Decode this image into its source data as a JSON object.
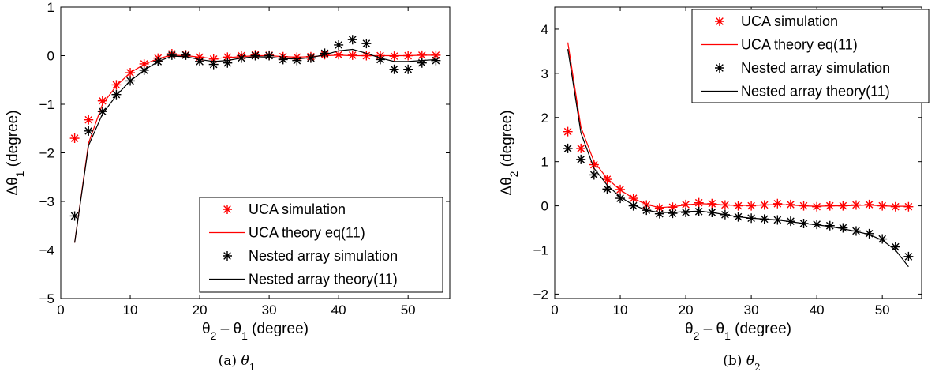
{
  "chart_data": [
    {
      "type": "line",
      "caption_label": "(a)",
      "caption_symbol": "θ",
      "caption_sub": "1",
      "xlabel": "θ2 − θ1 (degree)",
      "ylabel": "Δθ1 (degree)",
      "xlim": [
        0,
        56
      ],
      "ylim": [
        -5,
        1
      ],
      "xticks": [
        0,
        10,
        20,
        30,
        40,
        50
      ],
      "yticks": [
        1,
        0,
        -1,
        -2,
        -3,
        -4,
        -5
      ],
      "legend_position": "bottom-right",
      "series": [
        {
          "name": "UCA simulation",
          "style": "marker",
          "color": "#ff0000",
          "x": [
            2,
            4,
            6,
            8,
            10,
            12,
            14,
            16,
            18,
            20,
            22,
            24,
            26,
            28,
            30,
            32,
            34,
            36,
            38,
            40,
            42,
            44,
            46,
            48,
            50,
            52,
            54
          ],
          "y": [
            -1.7,
            -1.32,
            -0.93,
            -0.6,
            -0.35,
            -0.17,
            -0.05,
            0.04,
            0.02,
            -0.03,
            -0.07,
            -0.03,
            0.0,
            0.02,
            0.01,
            -0.02,
            -0.03,
            -0.02,
            0.02,
            0.02,
            0.01,
            0.0,
            0.0,
            -0.01,
            0.0,
            0.01,
            0.01
          ]
        },
        {
          "name": "UCA theory eq(11)",
          "style": "line",
          "color": "#ff0000",
          "x": [
            2,
            4,
            6,
            8,
            10,
            12,
            14,
            16,
            18,
            20,
            22,
            24,
            26,
            28,
            30,
            32,
            34,
            36,
            38,
            40,
            42,
            44,
            46,
            48,
            50,
            52,
            54
          ],
          "y": [
            -3.85,
            -1.8,
            -1.0,
            -0.62,
            -0.35,
            -0.18,
            -0.06,
            0.01,
            0.0,
            -0.03,
            -0.06,
            -0.04,
            -0.02,
            0.0,
            0.0,
            -0.02,
            -0.03,
            -0.02,
            0.0,
            0.01,
            0.0,
            0.0,
            0.0,
            0.0,
            0.0,
            0.01,
            0.01
          ]
        },
        {
          "name": "Nested array simulation",
          "style": "marker",
          "color": "#000000",
          "x": [
            2,
            4,
            6,
            8,
            10,
            12,
            14,
            16,
            18,
            20,
            22,
            24,
            26,
            28,
            30,
            32,
            34,
            36,
            38,
            40,
            42,
            44,
            46,
            48,
            50,
            52,
            54
          ],
          "y": [
            -3.3,
            -1.55,
            -1.15,
            -0.8,
            -0.52,
            -0.3,
            -0.12,
            0.01,
            0.01,
            -0.12,
            -0.18,
            -0.15,
            -0.05,
            0.0,
            0.0,
            -0.08,
            -0.1,
            -0.05,
            0.05,
            0.22,
            0.33,
            0.25,
            -0.08,
            -0.28,
            -0.28,
            -0.15,
            -0.1
          ]
        },
        {
          "name": "Nested array theory(11)",
          "style": "line",
          "color": "#000000",
          "x": [
            2,
            4,
            6,
            8,
            10,
            12,
            14,
            16,
            18,
            20,
            22,
            24,
            26,
            28,
            30,
            32,
            34,
            36,
            38,
            40,
            42,
            44,
            46,
            48,
            50,
            52,
            54
          ],
          "y": [
            -3.85,
            -1.85,
            -1.2,
            -0.82,
            -0.52,
            -0.3,
            -0.12,
            -0.01,
            -0.02,
            -0.08,
            -0.12,
            -0.1,
            -0.05,
            -0.02,
            -0.03,
            -0.06,
            -0.07,
            -0.04,
            0.02,
            0.1,
            0.13,
            0.05,
            -0.05,
            -0.12,
            -0.12,
            -0.1,
            -0.08
          ]
        }
      ]
    },
    {
      "type": "line",
      "caption_label": "(b)",
      "caption_symbol": "θ",
      "caption_sub": "2",
      "xlabel": "θ2 − θ1 (degree)",
      "ylabel": "Δθ2 (degree)",
      "xlim": [
        0,
        56
      ],
      "ylim": [
        -2.1,
        4.5
      ],
      "xticks": [
        0,
        10,
        20,
        30,
        40,
        50
      ],
      "yticks": [
        4,
        3,
        2,
        1,
        0,
        -1,
        -2
      ],
      "legend_position": "top-right",
      "series": [
        {
          "name": "UCA simulation",
          "style": "marker",
          "color": "#ff0000",
          "x": [
            2,
            4,
            6,
            8,
            10,
            12,
            14,
            16,
            18,
            20,
            22,
            24,
            26,
            28,
            30,
            32,
            34,
            36,
            38,
            40,
            42,
            44,
            46,
            48,
            50,
            52,
            54
          ],
          "y": [
            1.68,
            1.3,
            0.93,
            0.6,
            0.37,
            0.17,
            0.02,
            -0.05,
            -0.03,
            0.03,
            0.07,
            0.05,
            0.02,
            0.0,
            0.0,
            0.02,
            0.05,
            0.03,
            0.0,
            -0.02,
            0.0,
            0.0,
            0.02,
            0.03,
            0.0,
            -0.02,
            -0.02
          ]
        },
        {
          "name": "UCA theory eq(11)",
          "style": "line",
          "color": "#ff0000",
          "x": [
            2,
            4,
            6,
            8,
            10,
            12,
            14,
            16,
            18,
            20,
            22,
            24,
            26,
            28,
            30,
            32,
            34,
            36,
            38,
            40,
            42,
            44,
            46,
            48,
            50,
            52,
            54
          ],
          "y": [
            3.7,
            1.78,
            1.0,
            0.62,
            0.36,
            0.17,
            0.03,
            -0.04,
            -0.02,
            0.02,
            0.05,
            0.04,
            0.02,
            0.01,
            0.01,
            0.02,
            0.03,
            0.02,
            0.0,
            -0.01,
            0.0,
            0.0,
            0.01,
            0.02,
            0.0,
            -0.01,
            -0.01
          ]
        },
        {
          "name": "Nested array simulation",
          "style": "marker",
          "color": "#000000",
          "x": [
            2,
            4,
            6,
            8,
            10,
            12,
            14,
            16,
            18,
            20,
            22,
            24,
            26,
            28,
            30,
            32,
            34,
            36,
            38,
            40,
            42,
            44,
            46,
            48,
            50,
            52,
            54
          ],
          "y": [
            1.3,
            1.05,
            0.7,
            0.38,
            0.17,
            0.0,
            -0.1,
            -0.18,
            -0.17,
            -0.15,
            -0.13,
            -0.15,
            -0.2,
            -0.25,
            -0.28,
            -0.3,
            -0.32,
            -0.35,
            -0.4,
            -0.42,
            -0.45,
            -0.5,
            -0.57,
            -0.63,
            -0.75,
            -0.93,
            -1.15
          ]
        },
        {
          "name": "Nested array theory(11)",
          "style": "line",
          "color": "#000000",
          "x": [
            2,
            4,
            6,
            8,
            10,
            12,
            14,
            16,
            18,
            20,
            22,
            24,
            26,
            28,
            30,
            32,
            34,
            36,
            38,
            40,
            42,
            44,
            46,
            48,
            50,
            52,
            54
          ],
          "y": [
            3.55,
            1.65,
            0.85,
            0.47,
            0.2,
            0.02,
            -0.1,
            -0.15,
            -0.15,
            -0.13,
            -0.12,
            -0.15,
            -0.2,
            -0.25,
            -0.28,
            -0.3,
            -0.32,
            -0.36,
            -0.4,
            -0.43,
            -0.47,
            -0.52,
            -0.58,
            -0.65,
            -0.78,
            -1.0,
            -1.38
          ]
        }
      ]
    }
  ]
}
